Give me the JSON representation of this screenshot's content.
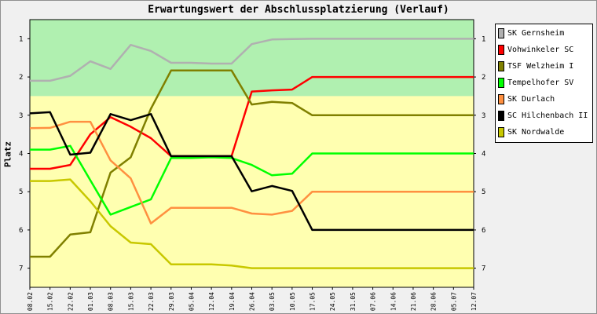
{
  "chart_data": {
    "type": "line",
    "title": "Erwartungswert der Abschlussplatzierung (Verlauf)",
    "ylabel": "Platz",
    "xlabel": "",
    "ylim": [
      0.5,
      7.5
    ],
    "y_inverted": true,
    "yticks": [
      1,
      2,
      3,
      4,
      5,
      6,
      7
    ],
    "categories": [
      "08.02",
      "15.02",
      "22.02",
      "01.03",
      "08.03",
      "15.03",
      "22.03",
      "29.03",
      "05.04",
      "12.04",
      "19.04",
      "26.04",
      "03.05",
      "10.05",
      "17.05",
      "24.05",
      "31.05",
      "07.06",
      "14.06",
      "21.06",
      "28.06",
      "05.07",
      "12.07"
    ],
    "bands": [
      {
        "from": 0.5,
        "to": 2.5,
        "color": "#b0f0b0"
      },
      {
        "from": 2.5,
        "to": 7.5,
        "color": "#ffffb0"
      }
    ],
    "legend_position": "right",
    "grid": false,
    "series": [
      {
        "name": "SK Gernsheim",
        "color": "#b0b0b0",
        "points": [
          [
            0,
            2.1
          ],
          [
            1,
            2.1
          ],
          [
            2,
            1.97
          ],
          [
            3,
            1.59
          ],
          [
            4,
            1.79
          ],
          [
            5,
            1.16
          ],
          [
            6,
            1.32
          ],
          [
            7,
            1.63
          ],
          [
            8,
            1.63
          ],
          [
            9,
            1.65
          ],
          [
            10,
            1.65
          ],
          [
            11,
            1.14
          ],
          [
            12,
            1.02
          ],
          [
            13,
            1.01
          ],
          [
            14,
            1.0
          ],
          [
            15,
            1.0
          ],
          [
            16,
            1.0
          ],
          [
            17,
            1.0
          ],
          [
            18,
            1.0
          ],
          [
            19,
            1.0
          ],
          [
            20,
            1.0
          ],
          [
            21,
            1.0
          ],
          [
            22,
            1.0
          ]
        ]
      },
      {
        "name": "Vohwinkeler SC",
        "color": "#ff0000",
        "points": [
          [
            0,
            4.4
          ],
          [
            1,
            4.4
          ],
          [
            2,
            4.3
          ],
          [
            3,
            3.5
          ],
          [
            4,
            3.05
          ],
          [
            5,
            3.3
          ],
          [
            6,
            3.6
          ],
          [
            7,
            4.07
          ],
          [
            8,
            4.07
          ],
          [
            9,
            4.07
          ],
          [
            10,
            4.07
          ],
          [
            11,
            2.38
          ],
          [
            12,
            2.35
          ],
          [
            13,
            2.33
          ],
          [
            14,
            2.0
          ],
          [
            15,
            2.0
          ],
          [
            16,
            2.0
          ],
          [
            17,
            2.0
          ],
          [
            18,
            2.0
          ],
          [
            19,
            2.0
          ],
          [
            20,
            2.0
          ],
          [
            21,
            2.0
          ],
          [
            22,
            2.0
          ]
        ]
      },
      {
        "name": "TSF Welzheim I",
        "color": "#808000",
        "points": [
          [
            0,
            6.7
          ],
          [
            1,
            6.7
          ],
          [
            2,
            6.12
          ],
          [
            3,
            6.06
          ],
          [
            4,
            4.5
          ],
          [
            5,
            4.1
          ],
          [
            6,
            2.83
          ],
          [
            7,
            1.83
          ],
          [
            8,
            1.83
          ],
          [
            9,
            1.83
          ],
          [
            10,
            1.83
          ],
          [
            11,
            2.72
          ],
          [
            12,
            2.65
          ],
          [
            13,
            2.68
          ],
          [
            14,
            3.0
          ],
          [
            15,
            3.0
          ],
          [
            16,
            3.0
          ],
          [
            17,
            3.0
          ],
          [
            18,
            3.0
          ],
          [
            19,
            3.0
          ],
          [
            20,
            3.0
          ],
          [
            21,
            3.0
          ],
          [
            22,
            3.0
          ]
        ]
      },
      {
        "name": "Tempelhofer SV",
        "color": "#00ff00",
        "points": [
          [
            0,
            3.9
          ],
          [
            1,
            3.9
          ],
          [
            2,
            3.8
          ],
          [
            3,
            4.7
          ],
          [
            4,
            5.6
          ],
          [
            5,
            5.4
          ],
          [
            6,
            5.2
          ],
          [
            7,
            4.12
          ],
          [
            8,
            4.12
          ],
          [
            9,
            4.1
          ],
          [
            10,
            4.12
          ],
          [
            11,
            4.3
          ],
          [
            12,
            4.57
          ],
          [
            13,
            4.53
          ],
          [
            14,
            4.0
          ],
          [
            15,
            4.0
          ],
          [
            16,
            4.0
          ],
          [
            17,
            4.0
          ],
          [
            18,
            4.0
          ],
          [
            19,
            4.0
          ],
          [
            20,
            4.0
          ],
          [
            21,
            4.0
          ],
          [
            22,
            4.0
          ]
        ]
      },
      {
        "name": "SK Durlach",
        "color": "#ff9040",
        "points": [
          [
            0,
            3.34
          ],
          [
            1,
            3.33
          ],
          [
            2,
            3.17
          ],
          [
            3,
            3.17
          ],
          [
            4,
            4.18
          ],
          [
            5,
            4.65
          ],
          [
            6,
            5.83
          ],
          [
            7,
            5.42
          ],
          [
            8,
            5.42
          ],
          [
            9,
            5.42
          ],
          [
            10,
            5.42
          ],
          [
            11,
            5.57
          ],
          [
            12,
            5.6
          ],
          [
            13,
            5.5
          ],
          [
            14,
            5.0
          ],
          [
            15,
            5.0
          ],
          [
            16,
            5.0
          ],
          [
            17,
            5.0
          ],
          [
            18,
            5.0
          ],
          [
            19,
            5.0
          ],
          [
            20,
            5.0
          ],
          [
            21,
            5.0
          ],
          [
            22,
            5.0
          ]
        ]
      },
      {
        "name": "SC Hilchenbach II",
        "color": "#000000",
        "points": [
          [
            0,
            2.95
          ],
          [
            1,
            2.92
          ],
          [
            2,
            4.03
          ],
          [
            3,
            3.98
          ],
          [
            4,
            2.97
          ],
          [
            5,
            3.13
          ],
          [
            6,
            2.97
          ],
          [
            7,
            4.07
          ],
          [
            8,
            4.07
          ],
          [
            9,
            4.07
          ],
          [
            10,
            4.07
          ],
          [
            11,
            4.99
          ],
          [
            12,
            4.85
          ],
          [
            13,
            4.98
          ],
          [
            14,
            6.0
          ],
          [
            15,
            6.0
          ],
          [
            16,
            6.0
          ],
          [
            17,
            6.0
          ],
          [
            18,
            6.0
          ],
          [
            19,
            6.0
          ],
          [
            20,
            6.0
          ],
          [
            21,
            6.0
          ],
          [
            22,
            6.0
          ]
        ]
      },
      {
        "name": "SK Nordwalde",
        "color": "#c8c800",
        "points": [
          [
            0,
            4.72
          ],
          [
            1,
            4.72
          ],
          [
            2,
            4.68
          ],
          [
            3,
            5.25
          ],
          [
            4,
            5.9
          ],
          [
            5,
            6.33
          ],
          [
            6,
            6.37
          ],
          [
            7,
            6.9
          ],
          [
            8,
            6.9
          ],
          [
            9,
            6.9
          ],
          [
            10,
            6.93
          ],
          [
            11,
            7.0
          ],
          [
            12,
            7.0
          ],
          [
            13,
            7.0
          ],
          [
            14,
            7.0
          ],
          [
            15,
            7.0
          ],
          [
            16,
            7.0
          ],
          [
            17,
            7.0
          ],
          [
            18,
            7.0
          ],
          [
            19,
            7.0
          ],
          [
            20,
            7.0
          ],
          [
            21,
            7.0
          ],
          [
            22,
            7.0
          ]
        ]
      }
    ]
  }
}
